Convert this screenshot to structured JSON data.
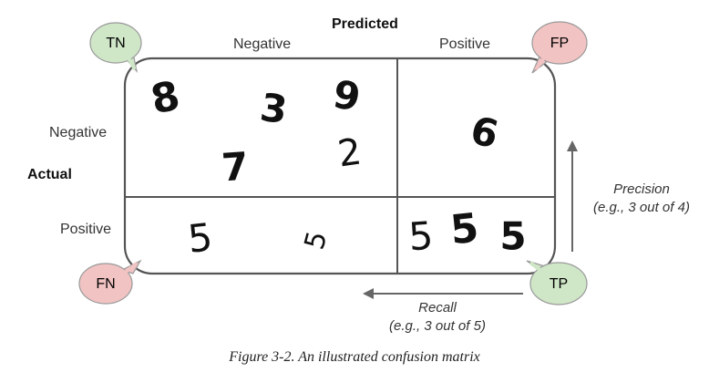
{
  "axis_labels": {
    "predicted": "Predicted",
    "actual": "Actual",
    "pred_negative": "Negative",
    "pred_positive": "Positive",
    "act_negative": "Negative",
    "act_positive": "Positive"
  },
  "bubbles": {
    "tn": "TN",
    "fp": "FP",
    "fn": "FN",
    "tp": "TP"
  },
  "digits": {
    "tn": [
      "8",
      "3",
      "9",
      "7",
      "2"
    ],
    "fp": [
      "6"
    ],
    "fn": [
      "5",
      "5"
    ],
    "tp": [
      "5",
      "5",
      "5"
    ]
  },
  "precision": {
    "label": "Precision",
    "example": "(e.g., 3 out of 4)"
  },
  "recall": {
    "label": "Recall",
    "example": "(e.g., 3 out of 5)"
  },
  "caption": "Figure 3-2. An illustrated confusion matrix",
  "colors": {
    "tn_fn_green": "#cfe6c7",
    "fp_red": "#f2c3c3",
    "fn_red": "#f2c3c3",
    "tp_green": "#cfe6c7",
    "stroke": "#555555"
  }
}
